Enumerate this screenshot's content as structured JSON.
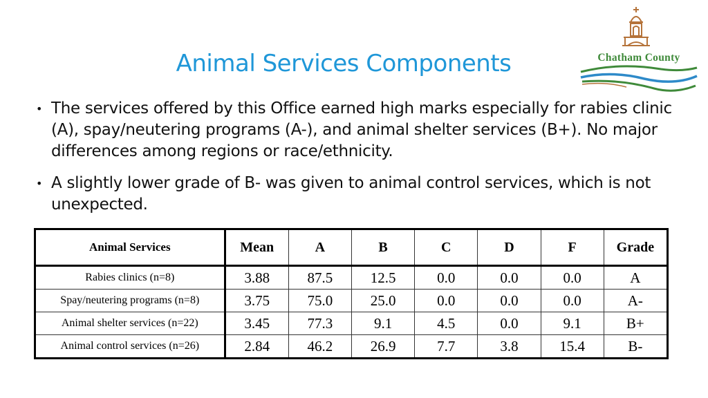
{
  "slide": {
    "title": "Animal Services Components",
    "bullets": [
      "The services offered by this Office earned high marks especially for rabies clinic (A), spay/neutering programs (A-), and animal shelter services (B+).  No major differences among regions or race/ethnicity.",
      "A slightly lower grade of B- was given to animal control services, which is not unexpected."
    ],
    "bullet_glyph": "•"
  },
  "logo": {
    "text": "Chatham County",
    "icon": "courthouse-cupola-icon",
    "colors": {
      "green": "#3f8a3a",
      "blue": "#2e8ac9",
      "brown": "#b5733a"
    }
  },
  "table": {
    "headers": [
      "Animal Services",
      "Mean",
      "A",
      "B",
      "C",
      "D",
      "F",
      "Grade"
    ],
    "rows": [
      [
        "Rabies clinics (n=8)",
        "3.88",
        "87.5",
        "12.5",
        "0.0",
        "0.0",
        "0.0",
        "A"
      ],
      [
        "Spay/neutering programs (n=8)",
        "3.75",
        "75.0",
        "25.0",
        "0.0",
        "0.0",
        "0.0",
        "A-"
      ],
      [
        "Animal shelter services (n=22)",
        "3.45",
        "77.3",
        "9.1",
        "4.5",
        "0.0",
        "9.1",
        "B+"
      ],
      [
        "Animal control services (n=26)",
        "2.84",
        "46.2",
        "26.9",
        "7.7",
        "3.8",
        "15.4",
        "B-"
      ]
    ]
  },
  "colors": {
    "title": "#1f97d8",
    "text": "#111111"
  }
}
